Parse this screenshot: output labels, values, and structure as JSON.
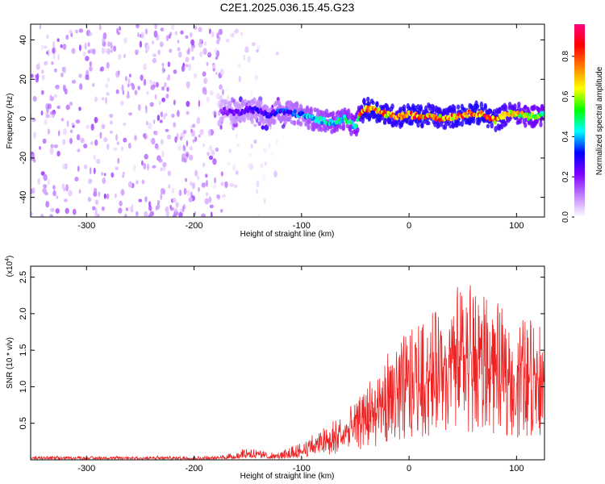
{
  "chart_data": [
    {
      "type": "heatmap",
      "title": "C2E1.2025.036.15.45.G23",
      "xlabel": "Height of straight line (km)",
      "ylabel": "Frequency (Hz)",
      "xlim": [
        -352,
        126
      ],
      "ylim": [
        -50,
        48
      ],
      "x_ticks": [
        -300,
        -200,
        -100,
        0,
        100
      ],
      "x_tick_labels": [
        "-300",
        "-200",
        "-100",
        "0",
        "100"
      ],
      "y_ticks": [
        -40,
        -20,
        0,
        20,
        40
      ],
      "y_tick_labels": [
        "-40",
        "-20",
        "0",
        "20",
        "40"
      ],
      "colorbar": {
        "label": "Normalized spectral amplitude",
        "range": [
          0.0,
          0.96
        ],
        "ticks": [
          0.0,
          0.2,
          0.4,
          0.6,
          0.8
        ],
        "tick_labels": [
          "0.0",
          "0.2",
          "0.4",
          "0.6",
          "0.8"
        ],
        "colormap": [
          "#ffffff",
          "#c080ff",
          "#8000ff",
          "#0000ff",
          "#00ffff",
          "#00ff00",
          "#ffff00",
          "#ff8000",
          "#ff0000",
          "#ff0080"
        ]
      },
      "regions": [
        {
          "x": [
            -352,
            -170
          ],
          "freq": [
            -50,
            48
          ],
          "amplitude": 0.08,
          "pattern": "broadband noise"
        },
        {
          "x": [
            -170,
            -120
          ],
          "freq": [
            -50,
            48
          ],
          "amplitude": 0.03,
          "pattern": "sparse noise"
        },
        {
          "x": [
            -170,
            -110
          ],
          "freq": [
            -5,
            10
          ],
          "amplitude": 0.15,
          "pattern": "band onset"
        }
      ],
      "ridge": {
        "x": [
          -175,
          -160,
          -150,
          -140,
          -130,
          -120,
          -110,
          -100,
          -90,
          -80,
          -70,
          -60,
          -50,
          -45,
          -40,
          -30,
          -20,
          -10,
          0,
          10,
          20,
          30,
          40,
          50,
          60,
          70,
          80,
          90,
          100,
          110,
          120,
          126
        ],
        "frequency": [
          4,
          3,
          5,
          4,
          2,
          4,
          3,
          2,
          0,
          -1,
          -2,
          0,
          -4,
          3,
          5,
          4,
          2,
          1,
          2,
          1,
          2,
          0,
          1,
          2,
          3,
          2,
          -1,
          2,
          3,
          1,
          2,
          2
        ],
        "amplitude": [
          0.2,
          0.25,
          0.25,
          0.3,
          0.3,
          0.35,
          0.35,
          0.4,
          0.45,
          0.45,
          0.5,
          0.5,
          0.55,
          0.75,
          0.85,
          0.85,
          0.8,
          0.8,
          0.85,
          0.85,
          0.8,
          0.8,
          0.8,
          0.85,
          0.85,
          0.85,
          0.8,
          0.75,
          0.7,
          0.65,
          0.65,
          0.6
        ]
      }
    },
    {
      "type": "line",
      "title": "",
      "xlabel": "Height of straight line (km)",
      "ylabel": "SNR (10 * v/v)",
      "y_multiplier": "(x10^4)",
      "xlim": [
        -352,
        126
      ],
      "ylim": [
        0.0,
        2.65
      ],
      "x_ticks": [
        -300,
        -200,
        -100,
        0,
        100
      ],
      "x_tick_labels": [
        "-300",
        "-200",
        "-100",
        "0",
        "100"
      ],
      "y_ticks": [
        0.5,
        1.0,
        1.5,
        2.0,
        2.5
      ],
      "y_tick_labels": [
        "0.5",
        "1.0",
        "1.5",
        "2.0",
        "2.5"
      ],
      "color": "#ee2222",
      "series": [
        {
          "x": [
            -352,
            -300,
            -250,
            -200,
            -180,
            -160,
            -150,
            -140,
            -130,
            -120,
            -110,
            -100,
            -90,
            -80,
            -70,
            -60,
            -50,
            -40,
            -30,
            -20,
            -10,
            0,
            10,
            20,
            30,
            40,
            50,
            60,
            70,
            80,
            90,
            100,
            110,
            120,
            126
          ],
          "mean": [
            0.02,
            0.02,
            0.02,
            0.02,
            0.02,
            0.04,
            0.08,
            0.06,
            0.04,
            0.04,
            0.06,
            0.1,
            0.15,
            0.2,
            0.25,
            0.3,
            0.4,
            0.5,
            0.6,
            0.7,
            0.8,
            0.9,
            1.0,
            1.1,
            1.15,
            1.2,
            1.2,
            1.25,
            1.15,
            1.1,
            1.1,
            1.0,
            1.05,
            1.0,
            1.0
          ],
          "max": [
            0.05,
            0.05,
            0.05,
            0.05,
            0.05,
            0.12,
            0.2,
            0.15,
            0.1,
            0.1,
            0.2,
            0.25,
            0.35,
            0.45,
            0.55,
            0.65,
            0.8,
            1.0,
            1.3,
            1.5,
            1.7,
            1.8,
            1.9,
            2.0,
            2.1,
            2.3,
            2.5,
            2.65,
            2.4,
            2.2,
            2.0,
            1.9,
            2.0,
            1.9,
            1.8
          ]
        }
      ]
    }
  ]
}
